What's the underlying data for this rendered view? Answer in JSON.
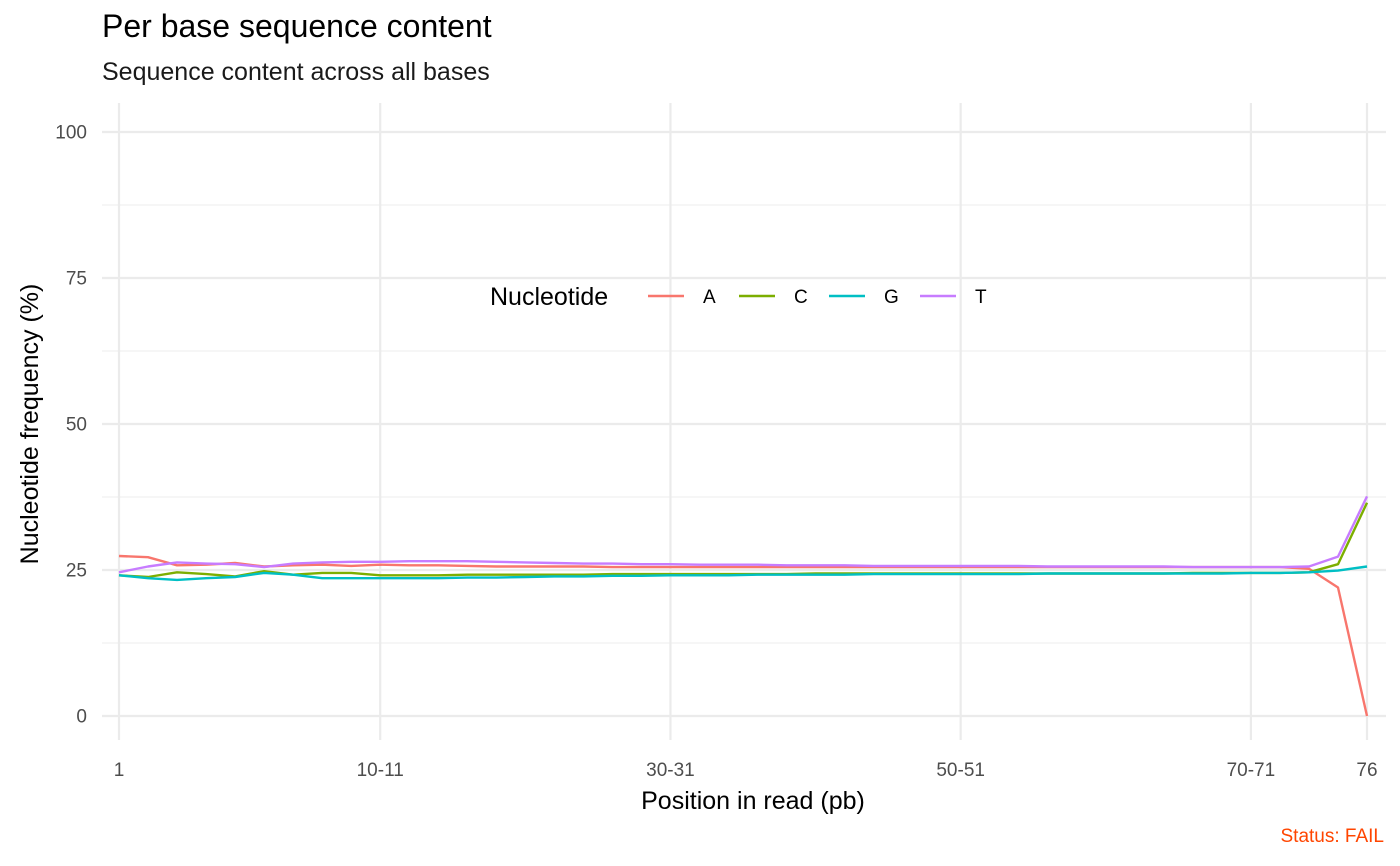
{
  "chart_data": {
    "type": "line",
    "title": "Per base sequence content",
    "subtitle": "Sequence content across all bases",
    "xlabel": "Position in read (pb)",
    "ylabel": "Nucleotide frequency (%)",
    "ylim": [
      0,
      100
    ],
    "yticks": [
      0,
      25,
      50,
      75,
      100
    ],
    "xticks": [
      "1",
      "10-11",
      "30-31",
      "50-51",
      "70-71",
      "76"
    ],
    "categories": [
      "1",
      "2",
      "3",
      "4",
      "5",
      "6",
      "7",
      "8",
      "9",
      "10-11",
      "12-13",
      "14-15",
      "16-17",
      "18-19",
      "20-21",
      "22-23",
      "24-25",
      "26-27",
      "28-29",
      "30-31",
      "32-33",
      "34-35",
      "36-37",
      "38-39",
      "40-41",
      "42-43",
      "44-45",
      "46-47",
      "48-49",
      "50-51",
      "52-53",
      "54-55",
      "56-57",
      "58-59",
      "60-61",
      "62-63",
      "64-65",
      "66-67",
      "68-69",
      "70-71",
      "72-73",
      "74",
      "75",
      "76"
    ],
    "tick_category_index": [
      0,
      9,
      19,
      29,
      39,
      43
    ],
    "legend_title": "Nucleotide",
    "legend_position": "top-center",
    "grid": true,
    "series": [
      {
        "name": "A",
        "color": "#F8766D",
        "values": [
          27.4,
          27.2,
          25.8,
          25.9,
          26.2,
          25.6,
          25.8,
          25.9,
          25.7,
          25.9,
          25.8,
          25.8,
          25.7,
          25.6,
          25.6,
          25.6,
          25.6,
          25.5,
          25.5,
          25.5,
          25.5,
          25.5,
          25.5,
          25.5,
          25.5,
          25.5,
          25.5,
          25.5,
          25.5,
          25.5,
          25.5,
          25.5,
          25.5,
          25.5,
          25.5,
          25.5,
          25.5,
          25.5,
          25.5,
          25.5,
          25.5,
          25.2,
          22.0,
          0.0
        ]
      },
      {
        "name": "C",
        "color": "#7CAE00",
        "values": [
          24.1,
          23.8,
          24.6,
          24.3,
          23.9,
          24.8,
          24.2,
          24.5,
          24.5,
          24.1,
          24.1,
          24.1,
          24.2,
          24.2,
          24.2,
          24.2,
          24.2,
          24.3,
          24.3,
          24.3,
          24.3,
          24.3,
          24.3,
          24.3,
          24.4,
          24.4,
          24.4,
          24.4,
          24.4,
          24.4,
          24.4,
          24.4,
          24.4,
          24.4,
          24.4,
          24.4,
          24.4,
          24.5,
          24.5,
          24.5,
          24.5,
          24.6,
          26.0,
          36.5
        ]
      },
      {
        "name": "G",
        "color": "#00BFC4",
        "values": [
          24.1,
          23.6,
          23.3,
          23.6,
          23.8,
          24.5,
          24.2,
          23.6,
          23.6,
          23.6,
          23.6,
          23.6,
          23.7,
          23.7,
          23.8,
          23.9,
          23.9,
          24.0,
          24.0,
          24.1,
          24.1,
          24.1,
          24.2,
          24.2,
          24.2,
          24.2,
          24.3,
          24.3,
          24.3,
          24.3,
          24.3,
          24.3,
          24.4,
          24.4,
          24.4,
          24.4,
          24.4,
          24.4,
          24.4,
          24.5,
          24.5,
          24.6,
          24.9,
          25.6
        ]
      },
      {
        "name": "T",
        "color": "#C77CFF",
        "values": [
          24.6,
          25.6,
          26.3,
          26.1,
          26.0,
          25.5,
          26.1,
          26.3,
          26.4,
          26.4,
          26.5,
          26.5,
          26.5,
          26.4,
          26.3,
          26.2,
          26.1,
          26.1,
          26.0,
          26.0,
          25.9,
          25.9,
          25.9,
          25.8,
          25.8,
          25.8,
          25.7,
          25.7,
          25.7,
          25.7,
          25.7,
          25.7,
          25.6,
          25.6,
          25.6,
          25.6,
          25.6,
          25.5,
          25.5,
          25.5,
          25.5,
          25.6,
          27.3,
          37.6
        ]
      }
    ]
  },
  "status": "Status: FAIL"
}
